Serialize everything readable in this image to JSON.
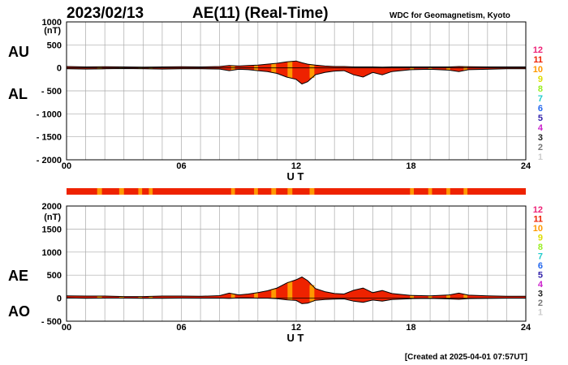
{
  "header": {
    "date": "2023/02/13",
    "title": "AE(11) (Real-Time)",
    "org": "WDC for Geomagnetism, Kyoto"
  },
  "footer": {
    "created": "[Created at 2025-04-01 07:57UT]"
  },
  "colors": {
    "fill_main": "#ee2200",
    "fill_alt": "#ff9900",
    "outline": "#000000",
    "grid": "#aaaaaa",
    "bar_main": "#ee2200",
    "bar_alt": "#ff9900"
  },
  "legend": [
    {
      "label": "12",
      "color": "#ee2277"
    },
    {
      "label": "11",
      "color": "#ee2200"
    },
    {
      "label": "10",
      "color": "#ff9900"
    },
    {
      "label": "9",
      "color": "#dddd00"
    },
    {
      "label": "8",
      "color": "#99ee22"
    },
    {
      "label": "7",
      "color": "#22cccc"
    },
    {
      "label": "6",
      "color": "#2266ee"
    },
    {
      "label": "5",
      "color": "#3322aa"
    },
    {
      "label": "4",
      "color": "#cc22cc"
    },
    {
      "label": "3",
      "color": "#222222"
    },
    {
      "label": "2",
      "color": "#777777"
    },
    {
      "label": "1",
      "color": "#cccccc"
    }
  ],
  "station_bar": {
    "alt_segments_hours": [
      [
        1.6,
        1.85
      ],
      [
        2.75,
        3.0
      ],
      [
        3.75,
        3.95
      ],
      [
        4.3,
        4.5
      ],
      [
        8.6,
        8.8
      ],
      [
        9.8,
        10.0
      ],
      [
        10.7,
        10.95
      ],
      [
        11.55,
        11.8
      ],
      [
        12.7,
        12.95
      ],
      [
        17.95,
        18.15
      ],
      [
        18.9,
        19.1
      ],
      [
        19.85,
        20.05
      ],
      [
        20.75,
        20.95
      ]
    ]
  },
  "chart_data": [
    {
      "type": "area",
      "panel": "AU/AL",
      "upper_label": "AU",
      "lower_label": "AL",
      "xlabel": "U T",
      "ylabel": "(nT)",
      "xlim": [
        0,
        24
      ],
      "ylim": [
        -2000,
        1000
      ],
      "yticks": [
        "1000",
        "500",
        "0",
        "- 500",
        "- 1000",
        "- 1500",
        "- 2000"
      ],
      "xticks": [
        "00",
        "06",
        "12",
        "18",
        "24"
      ],
      "grid": true,
      "series": [
        {
          "name": "AU",
          "x": [
            0,
            1,
            2,
            3,
            4,
            5,
            6,
            7,
            8,
            8.5,
            9,
            9.5,
            10,
            10.5,
            11,
            11.5,
            12,
            12.3,
            12.6,
            13,
            13.5,
            14,
            14.5,
            15,
            15.5,
            16,
            16.5,
            17,
            18,
            19,
            20,
            20.5,
            21,
            22,
            23,
            24
          ],
          "values": [
            30,
            20,
            25,
            20,
            15,
            20,
            25,
            20,
            30,
            50,
            40,
            50,
            60,
            80,
            100,
            130,
            150,
            110,
            80,
            60,
            40,
            30,
            30,
            20,
            20,
            20,
            15,
            20,
            20,
            20,
            20,
            30,
            25,
            20,
            20,
            20
          ]
        },
        {
          "name": "AL",
          "x": [
            0,
            1,
            2,
            3,
            4,
            5,
            6,
            7,
            8,
            8.5,
            9,
            9.5,
            10,
            10.5,
            11,
            11.5,
            12,
            12.3,
            12.6,
            13,
            13.5,
            14,
            14.5,
            15,
            15.5,
            16,
            16.5,
            17,
            18,
            19,
            20,
            20.5,
            21,
            22,
            23,
            24
          ],
          "values": [
            -20,
            -25,
            -20,
            -15,
            -20,
            -25,
            -20,
            -20,
            -25,
            -60,
            -30,
            -40,
            -60,
            -80,
            -120,
            -200,
            -250,
            -350,
            -300,
            -150,
            -100,
            -70,
            -60,
            -150,
            -200,
            -100,
            -150,
            -80,
            -40,
            -30,
            -50,
            -80,
            -40,
            -30,
            -20,
            -20
          ]
        }
      ]
    },
    {
      "type": "area",
      "panel": "AE/AO",
      "upper_label": "AE",
      "lower_label": "AO",
      "xlabel": "U T",
      "ylabel": "(nT)",
      "xlim": [
        0,
        24
      ],
      "ylim": [
        -500,
        2000
      ],
      "yticks": [
        "2000",
        "1500",
        "1000",
        "500",
        "0",
        "- 500"
      ],
      "xticks": [
        "00",
        "06",
        "12",
        "18",
        "24"
      ],
      "grid": true,
      "series": [
        {
          "name": "AE",
          "x": [
            0,
            1,
            2,
            3,
            4,
            5,
            6,
            7,
            8,
            8.5,
            9,
            9.5,
            10,
            10.5,
            11,
            11.5,
            12,
            12.3,
            12.6,
            13,
            13.5,
            14,
            14.5,
            15,
            15.5,
            16,
            16.5,
            17,
            18,
            19,
            20,
            20.5,
            21,
            22,
            23,
            24
          ],
          "values": [
            50,
            45,
            45,
            35,
            35,
            45,
            45,
            40,
            55,
            110,
            70,
            90,
            120,
            160,
            220,
            330,
            400,
            460,
            380,
            210,
            140,
            100,
            90,
            170,
            220,
            120,
            165,
            100,
            60,
            50,
            70,
            110,
            65,
            50,
            40,
            40
          ]
        },
        {
          "name": "AO",
          "x": [
            0,
            1,
            2,
            3,
            4,
            5,
            6,
            7,
            8,
            8.5,
            9,
            9.5,
            10,
            10.5,
            11,
            11.5,
            12,
            12.3,
            12.6,
            13,
            13.5,
            14,
            14.5,
            15,
            15.5,
            16,
            16.5,
            17,
            18,
            19,
            20,
            20.5,
            21,
            22,
            23,
            24
          ],
          "values": [
            5,
            -2,
            2,
            2,
            -2,
            -2,
            2,
            0,
            2,
            -5,
            5,
            5,
            0,
            0,
            -10,
            -35,
            -50,
            -120,
            -110,
            -45,
            -30,
            -20,
            -15,
            -65,
            -90,
            -40,
            -65,
            -30,
            -10,
            -5,
            -15,
            -25,
            -8,
            -5,
            0,
            0
          ]
        }
      ]
    }
  ]
}
